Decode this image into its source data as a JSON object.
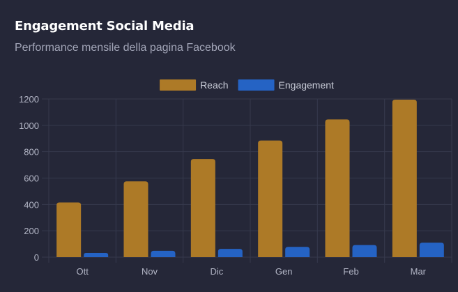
{
  "header": {
    "title": "Engagement Social Media",
    "subtitle": "Performance mensile della pagina Facebook"
  },
  "colors": {
    "background": "#252738",
    "grid": "#363a4d",
    "tick_text": "#b3b6c6",
    "legend_text": "#c9ccd8"
  },
  "chart_data": {
    "type": "bar",
    "categories": [
      "Ott",
      "Nov",
      "Dic",
      "Gen",
      "Feb",
      "Mar"
    ],
    "series": [
      {
        "name": "Reach",
        "values": [
          415,
          575,
          745,
          885,
          1045,
          1195
        ],
        "color": "#ad7a27"
      },
      {
        "name": "Engagement",
        "values": [
          32,
          48,
          63,
          78,
          92,
          110
        ],
        "color": "#2563c4"
      }
    ],
    "ylim": [
      0,
      1200
    ],
    "yticks": [
      0,
      200,
      400,
      600,
      800,
      1000,
      1200
    ],
    "grid": true,
    "legend": "top-center"
  }
}
